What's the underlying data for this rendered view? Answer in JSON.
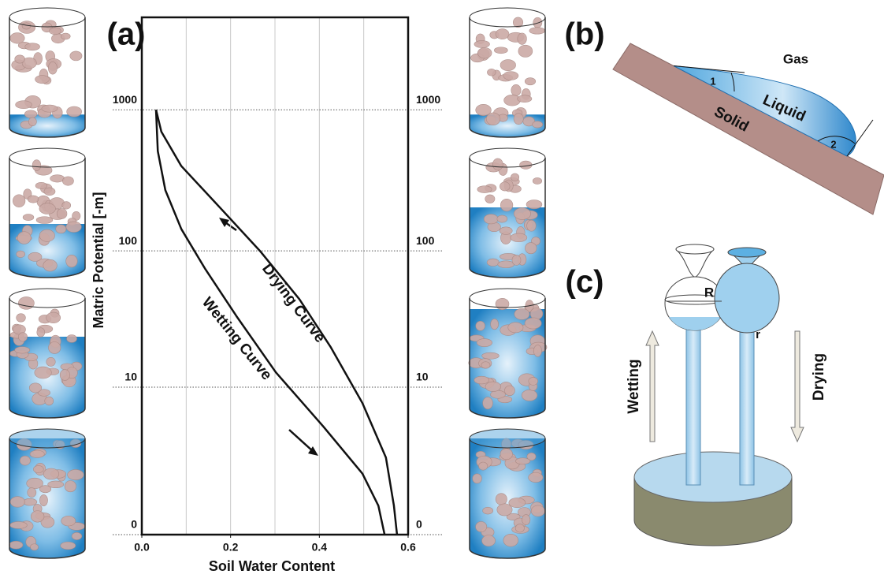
{
  "chart_data": {
    "type": "line",
    "panel_label": "(a)",
    "x_label": "Soil Water Content",
    "y_label": "Matric Potential [-m]",
    "xlim": [
      0,
      0.6
    ],
    "xticks": [
      {
        "value": 0,
        "label": "0.0"
      },
      0.2,
      0.4,
      0.6
    ],
    "xgrid": [
      0.1,
      0.2,
      0.3,
      0.4,
      0.5
    ],
    "ylim": [
      0,
      4500
    ],
    "yscale": "log1p",
    "yticks": [
      0,
      10,
      100,
      1000
    ],
    "grid": true,
    "series": [
      {
        "name": "Drying Curve",
        "color": "#111111",
        "x": [
          0.032,
          0.044,
          0.089,
          0.178,
          0.266,
          0.355,
          0.426,
          0.497,
          0.55,
          0.568,
          0.575
        ],
        "values": [
          1000,
          700,
          400,
          200,
          100,
          45,
          20,
          7.5,
          2.5,
          0.6,
          0
        ]
      },
      {
        "name": "Wetting Curve",
        "color": "#111111",
        "x": [
          0.032,
          0.036,
          0.053,
          0.089,
          0.142,
          0.213,
          0.302,
          0.409,
          0.497,
          0.533,
          0.547
        ],
        "values": [
          1000,
          510,
          270,
          143,
          75,
          34,
          13,
          4.8,
          1.7,
          0.6,
          0
        ]
      }
    ]
  },
  "panel_b": {
    "label": "(b)",
    "gas": "Gas",
    "liquid": "Liquid",
    "solid": "Solid",
    "angle_1": "1",
    "angle_2": "2"
  },
  "panel_c": {
    "label": "(c)",
    "radius_large": "R",
    "radius_small": "r",
    "wetting": "Wetting",
    "drying": "Drying"
  }
}
